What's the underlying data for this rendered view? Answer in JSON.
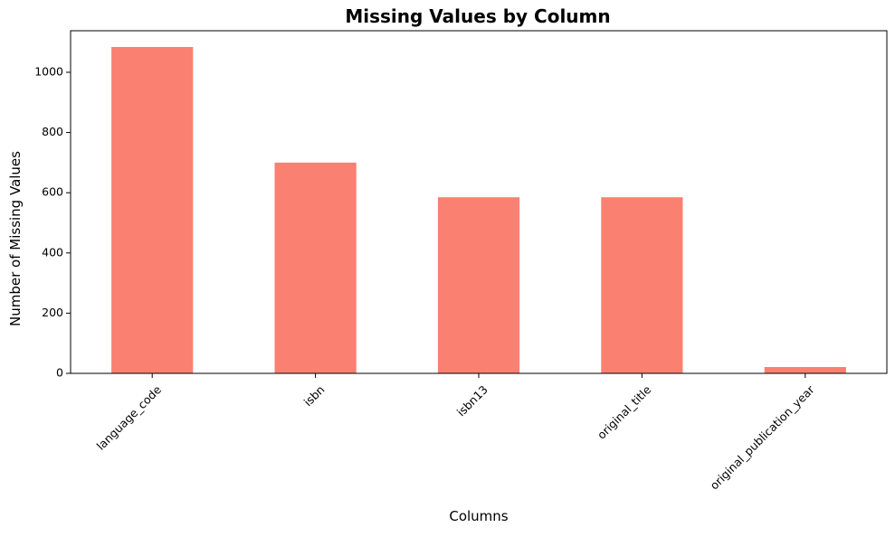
{
  "chart_data": {
    "type": "bar",
    "title": "Missing Values by Column",
    "xlabel": "Columns",
    "ylabel": "Number of Missing Values",
    "categories": [
      "language_code",
      "isbn",
      "isbn13",
      "original_title",
      "original_publication_year"
    ],
    "values": [
      1084,
      700,
      585,
      585,
      21
    ],
    "ylim": [
      0,
      1138
    ],
    "yticks": [
      0,
      200,
      400,
      600,
      800,
      1000
    ],
    "ytick_labels": [
      "0",
      "200",
      "400",
      "600",
      "800",
      "1000"
    ],
    "bar_color": "#fa8072",
    "grid": false,
    "legend": "none"
  }
}
